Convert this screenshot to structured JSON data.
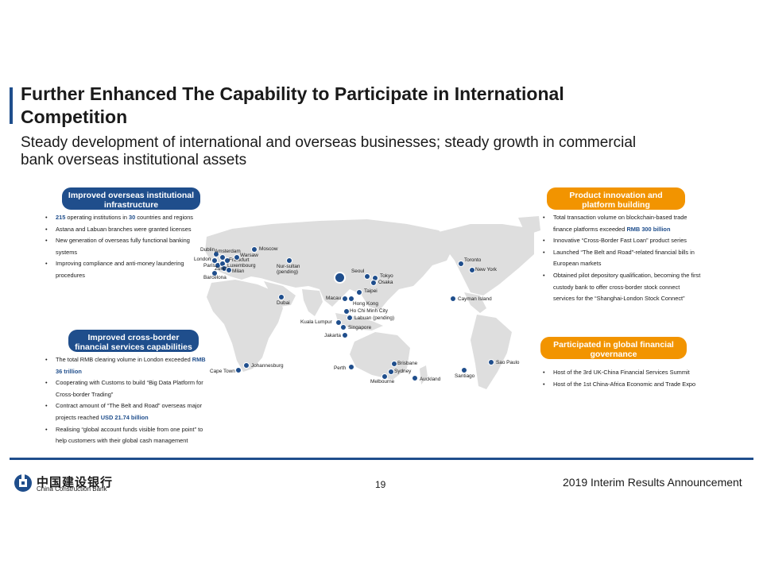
{
  "header": {
    "title": "Further Enhanced The Capability to Participate in International Competition",
    "subtitle": "Steady development of international and overseas businesses; steady growth in commercial bank overseas institutional assets"
  },
  "left_top": {
    "heading": "Improved overseas institutional infrastructure",
    "bullets": [
      {
        "pre": "",
        "hl": "215",
        "mid": " operating institutions in ",
        "hl2": "30",
        "post": " countries and regions"
      },
      {
        "pre": "Astana and Labuan branches were granted licenses",
        "hl": "",
        "mid": "",
        "hl2": "",
        "post": ""
      },
      {
        "pre": "New generation of overseas fully functional banking systems",
        "hl": "",
        "mid": "",
        "hl2": "",
        "post": ""
      },
      {
        "pre": "Improving compliance and anti-money laundering procedures",
        "hl": "",
        "mid": "",
        "hl2": "",
        "post": ""
      }
    ]
  },
  "left_bottom": {
    "heading": "Improved cross-border financial services capabilities",
    "bullets": [
      {
        "pre": "The total RMB clearing volume in London exceeded ",
        "hl": "RMB 36 trillion",
        "post": ""
      },
      {
        "pre": "Cooperating with Customs to build “Big Data Platform for Cross-border Trading”",
        "hl": "",
        "post": ""
      },
      {
        "pre": "Contract amount of “The Belt and Road” overseas major projects reached ",
        "hl": "USD 21.74 billion",
        "post": ""
      },
      {
        "pre": "Realising “global account funds visible from one point” to help customers with their global cash management",
        "hl": "",
        "post": ""
      }
    ]
  },
  "right_top": {
    "heading": "Product innovation and platform building",
    "bullets": [
      {
        "pre": "Total transaction volume on blockchain-based trade finance platforms exceeded ",
        "hl": "RMB 300 billion",
        "post": ""
      },
      {
        "pre": "Innovative “Cross-Border Fast Loan” product series",
        "hl": "",
        "post": ""
      },
      {
        "pre": "Launched “The Belt and Road”-related financial bills in European markets",
        "hl": "",
        "post": ""
      },
      {
        "pre": "Obtained pilot depository qualification, becoming the first custody bank to offer cross-border stock connect services for the “Shanghai-London Stock Connect”",
        "hl": "",
        "post": ""
      }
    ]
  },
  "right_bottom": {
    "heading": "Participated in global financial governance",
    "bullets": [
      {
        "pre": "Host of the 3rd UK-China Financial Services Summit",
        "hl": "",
        "post": ""
      },
      {
        "pre": "Host of the 1st China-Africa Economic and Trade Expo",
        "hl": "",
        "post": ""
      }
    ]
  },
  "map_cities": [
    "Dublin",
    "Amsterdam",
    "London",
    "Frankfurt",
    "Warsaw",
    "Moscow",
    "Paris",
    "Luxembourg",
    "Zurich",
    "Milan",
    "Barcelona",
    "Nur-sultan (pending)",
    "Seoul",
    "Tokyo",
    "Osaka",
    "Dubai",
    "Taipei",
    "Macau",
    "Hong Kong",
    "Ho Chi Minh City",
    "Labuan (pending)",
    "Kuala Lumpur",
    "Singapore",
    "Jakarta",
    "Toronto",
    "New York",
    "Cayman Island",
    "Johannesburg",
    "Cape Town",
    "Perth",
    "Brisbane",
    "Sydney",
    "Melbourne",
    "Auckland",
    "Santiago",
    "Sao Paulo"
  ],
  "footer": {
    "logo_cn": "中国建设银行",
    "logo_en": "China Construction Bank",
    "page": "19",
    "report": "2019 Interim Results Announcement"
  },
  "colors": {
    "primary_blue": "#1f4e8c",
    "orange": "#f29400",
    "map_grey": "#dedede"
  }
}
